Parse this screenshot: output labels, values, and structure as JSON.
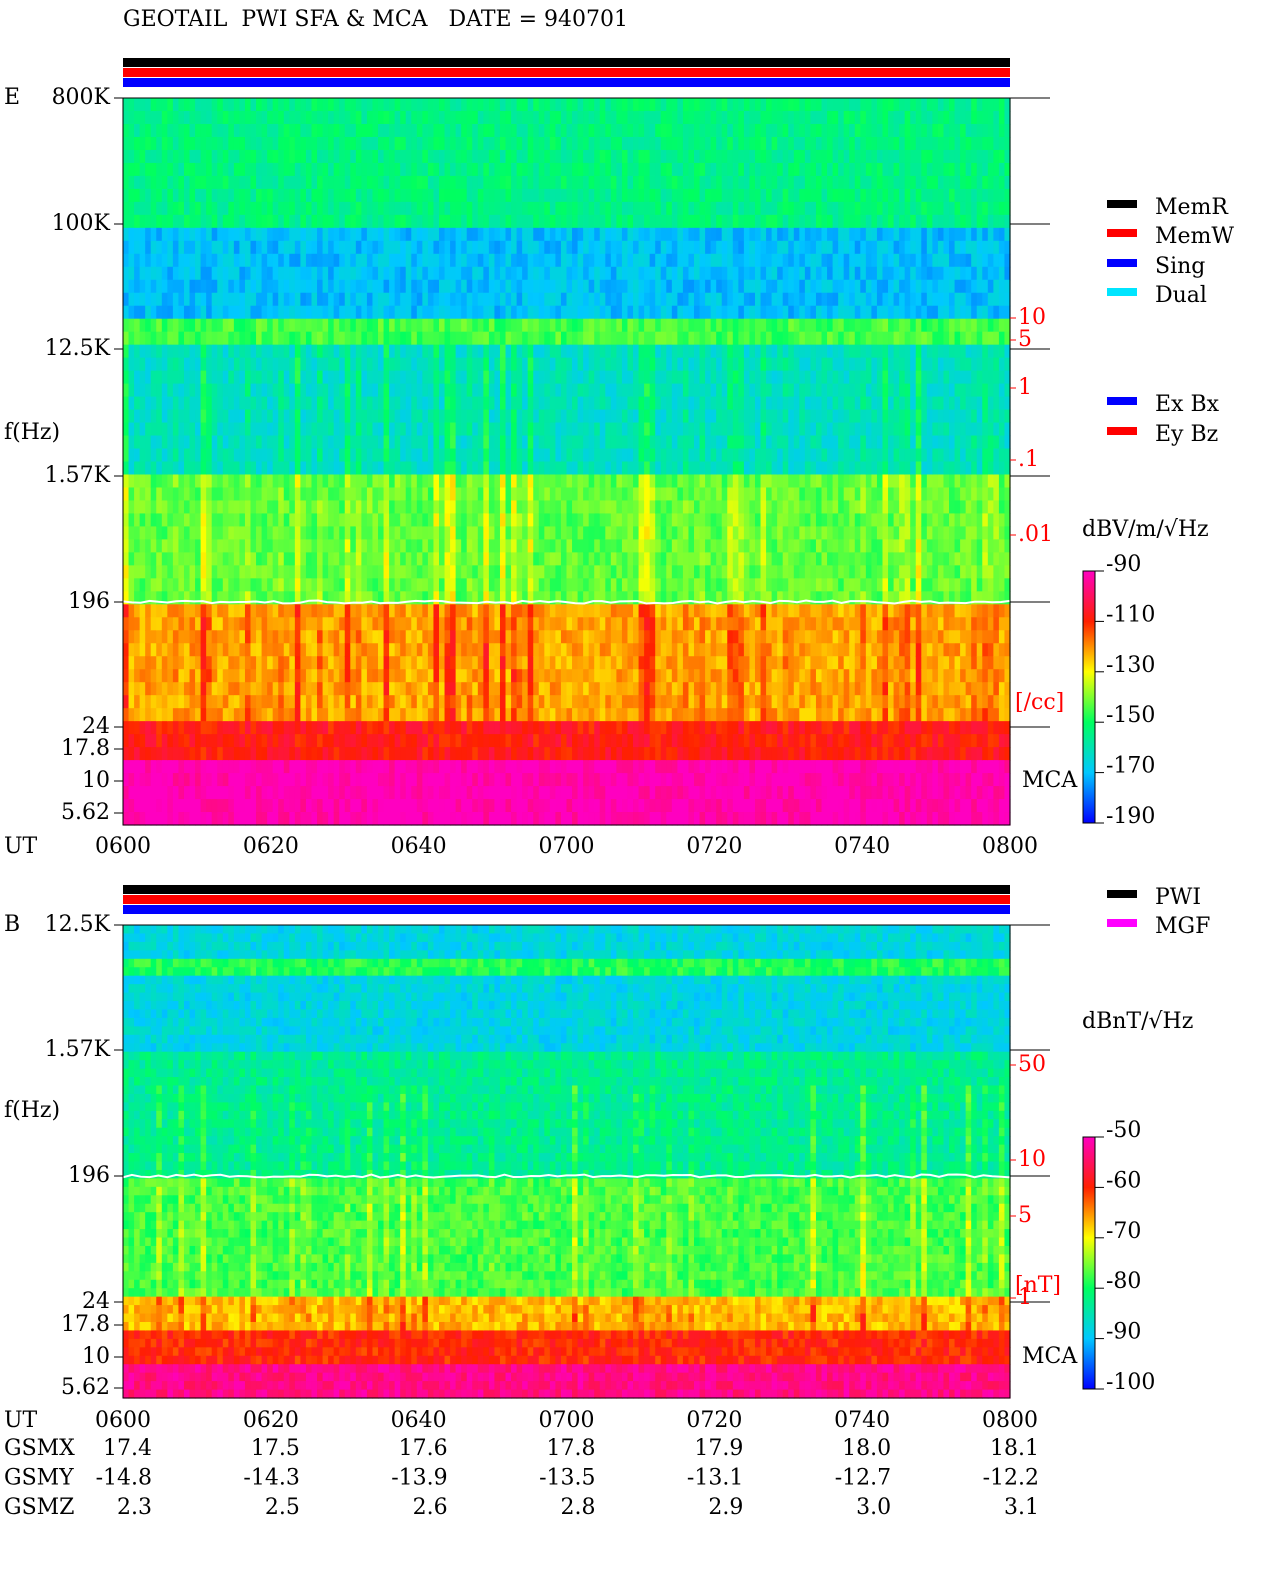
{
  "header": {
    "title": "GEOTAIL  PWI SFA & MCA   DATE = 940701"
  },
  "panels": [
    {
      "label": "E",
      "freq_labels": [
        "800K",
        "100K",
        "12.5K",
        "1.57K",
        "196",
        "24",
        "17.8",
        "10",
        "5.62"
      ],
      "axis_label": "f(Hz)",
      "time_label": "UT",
      "time_ticks": [
        "0600",
        "0620",
        "0640",
        "0700",
        "0720",
        "0740",
        "0800"
      ],
      "side_labels": [
        "10",
        "5",
        "1",
        ".1",
        ".01"
      ],
      "side_unit": "[/cc]",
      "mca": "MCA",
      "legend_top": [
        {
          "name": "MemR",
          "color": "#000000"
        },
        {
          "name": "MemW",
          "color": "#ff0000"
        },
        {
          "name": "Sing",
          "color": "#0000ff"
        },
        {
          "name": "Dual",
          "color": "#00e5ff"
        }
      ],
      "legend_bottom": [
        {
          "name": "Ex Bx",
          "color": "#0000ff"
        },
        {
          "name": "Ey Bz",
          "color": "#ff0000"
        }
      ],
      "colorbar_title": "dBV/m/√Hz",
      "colorbar_ticks": [
        "-90",
        "-110",
        "-130",
        "-150",
        "-170",
        "-190"
      ]
    },
    {
      "label": "B",
      "freq_labels": [
        "12.5K",
        "1.57K",
        "196",
        "24",
        "17.8",
        "10",
        "5.62"
      ],
      "axis_label": "f(Hz)",
      "time_label": "UT",
      "time_ticks": [
        "0600",
        "0620",
        "0640",
        "0700",
        "0720",
        "0740",
        "0800"
      ],
      "side_labels": [
        "50",
        "10",
        "5",
        "1"
      ],
      "side_unit": "[nT]",
      "mca": "MCA",
      "legend_top": [
        {
          "name": "PWI",
          "color": "#000000"
        },
        {
          "name": "MGF",
          "color": "#ff00ff"
        }
      ],
      "colorbar_title": "dBnT/√Hz",
      "colorbar_ticks": [
        "-50",
        "-60",
        "-70",
        "-80",
        "-90",
        "-100"
      ]
    }
  ],
  "orbit": [
    {
      "name": "GSMX",
      "values": [
        "17.4",
        "17.5",
        "17.6",
        "17.8",
        "17.9",
        "18.0",
        "18.1"
      ]
    },
    {
      "name": "GSMY",
      "values": [
        "-14.8",
        "-14.3",
        "-13.9",
        "-13.5",
        "-13.1",
        "-12.7",
        "-12.2"
      ]
    },
    {
      "name": "GSMZ",
      "values": [
        "2.3",
        "2.5",
        "2.6",
        "2.8",
        "2.9",
        "3.0",
        "3.1"
      ]
    }
  ]
}
